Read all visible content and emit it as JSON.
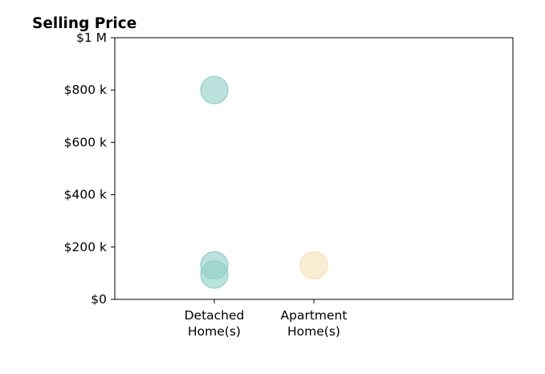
{
  "chart_data": {
    "type": "scatter",
    "title": "Selling Price",
    "xlabel": "",
    "ylabel": "",
    "categories": [
      {
        "lines": [
          "Detached",
          "Home(s)"
        ]
      },
      {
        "lines": [
          "Apartment",
          "Home(s)"
        ]
      }
    ],
    "ylim": [
      0,
      1000000
    ],
    "yticks": [
      {
        "value": 0,
        "label": "$0"
      },
      {
        "value": 200000,
        "label": "$200 k"
      },
      {
        "value": 400000,
        "label": "$400 k"
      },
      {
        "value": 600000,
        "label": "$600 k"
      },
      {
        "value": 800000,
        "label": "$800 k"
      },
      {
        "value": 1000000,
        "label": "$1 M"
      }
    ],
    "grid": false,
    "series": [
      {
        "color": "#8fcfc6",
        "points": [
          {
            "category": 0,
            "y": 800000
          },
          {
            "category": 0,
            "y": 130000
          },
          {
            "category": 0,
            "y": 95000
          }
        ]
      },
      {
        "color": "#f5e1b5",
        "points": [
          {
            "category": 1,
            "y": 130000
          }
        ]
      }
    ]
  }
}
